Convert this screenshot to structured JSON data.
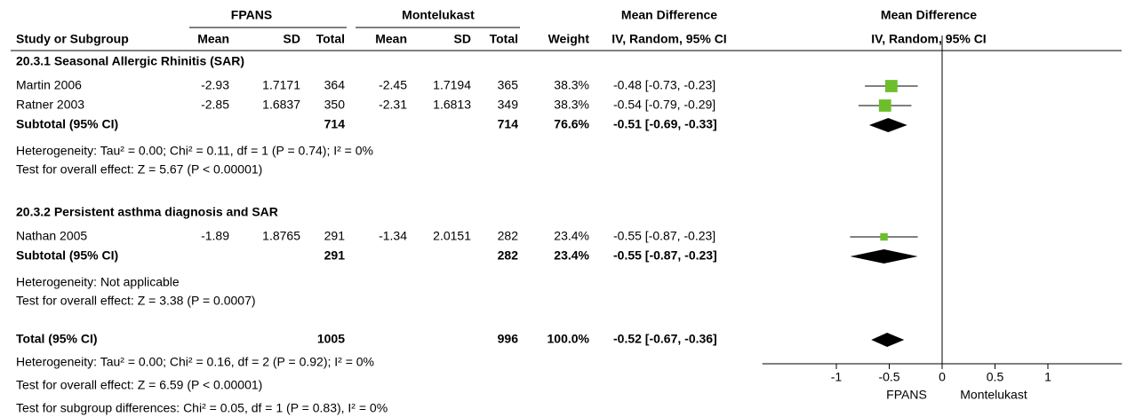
{
  "chart_data": {
    "type": "forest",
    "group_headers": [
      "FPANS",
      "Montelukast",
      "Mean Difference",
      "Mean Difference"
    ],
    "columns": [
      "Study or Subgroup",
      "Mean",
      "SD",
      "Total",
      "Mean",
      "SD",
      "Total",
      "Weight",
      "IV, Random, 95% CI",
      "IV, Random, 95% CI"
    ],
    "subgroups": [
      {
        "title": "20.3.1 Seasonal Allergic Rhinitis (SAR)",
        "studies": [
          {
            "name": "Martin 2006",
            "cells": [
              -2.93,
              1.7171,
              364,
              -2.45,
              1.7194,
              365
            ],
            "weight": 38.3,
            "weight_label": "38.3%",
            "md": -0.48,
            "ci": [
              -0.73,
              -0.23
            ],
            "effect_label": "-0.48 [-0.73, -0.23]"
          },
          {
            "name": "Ratner 2003",
            "cells": [
              -2.85,
              1.6837,
              350,
              -2.31,
              1.6813,
              349
            ],
            "weight": 38.3,
            "weight_label": "38.3%",
            "md": -0.54,
            "ci": [
              -0.79,
              -0.29
            ],
            "effect_label": "-0.54 [-0.79, -0.29]"
          }
        ],
        "subtotal": {
          "label": "Subtotal (95% CI)",
          "totals": [
            714,
            714
          ],
          "weight": 76.6,
          "weight_label": "76.6%",
          "md": -0.51,
          "ci": [
            -0.69,
            -0.33
          ],
          "effect_label": "-0.51 [-0.69, -0.33]"
        },
        "notes": [
          "Heterogeneity: Tau² = 0.00; Chi² = 0.11, df = 1 (P = 0.74); I² = 0%",
          "Test for overall effect: Z = 5.67 (P < 0.00001)"
        ]
      },
      {
        "title": "20.3.2 Persistent asthma diagnosis and SAR",
        "studies": [
          {
            "name": "Nathan 2005",
            "cells": [
              -1.89,
              1.8765,
              291,
              -1.34,
              2.0151,
              282
            ],
            "weight": 23.4,
            "weight_label": "23.4%",
            "md": -0.55,
            "ci": [
              -0.87,
              -0.23
            ],
            "effect_label": "-0.55 [-0.87, -0.23]"
          }
        ],
        "subtotal": {
          "label": "Subtotal (95% CI)",
          "totals": [
            291,
            282
          ],
          "weight": 23.4,
          "weight_label": "23.4%",
          "md": -0.55,
          "ci": [
            -0.87,
            -0.23
          ],
          "effect_label": "-0.55 [-0.87, -0.23]"
        },
        "notes": [
          "Heterogeneity: Not applicable",
          "Test for overall effect: Z = 3.38 (P = 0.0007)"
        ]
      }
    ],
    "total": {
      "label": "Total (95% CI)",
      "totals": [
        1005,
        996
      ],
      "weight": 100,
      "weight_label": "100.0%",
      "md": -0.52,
      "ci": [
        -0.67,
        -0.36
      ],
      "effect_label": "-0.52 [-0.67, -0.36]"
    },
    "total_notes": [
      "Heterogeneity: Tau² = 0.00; Chi² = 0.16, df = 2 (P = 0.92); I² = 0%",
      "Test for overall effect: Z = 6.59 (P < 0.00001)",
      "Test for subgroup differences: Chi² = 0.05, df = 1 (P = 0.83), I² = 0%"
    ],
    "xlim": [
      -1.7,
      1.7
    ],
    "xticks": [
      -1,
      -0.5,
      0,
      0.5,
      1
    ],
    "axis_labels": [
      "FPANS",
      "Montelukast"
    ],
    "square_color": "#6cbf2b",
    "diamond_color": "#000000"
  }
}
